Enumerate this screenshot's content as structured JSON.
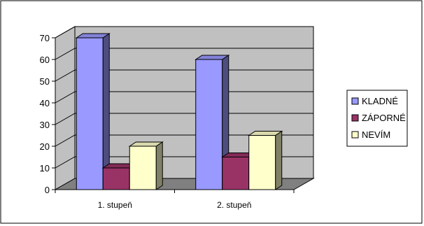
{
  "chart_data": {
    "type": "bar",
    "categories": [
      "1. stupeň",
      "2. stupeň"
    ],
    "series": [
      {
        "name": "KLADNÉ",
        "values": [
          70,
          60
        ],
        "color": "#9999ff"
      },
      {
        "name": "ZÁPORNÉ",
        "values": [
          10,
          15
        ],
        "color": "#993366"
      },
      {
        "name": "NEVÍM",
        "values": [
          20,
          25
        ],
        "color": "#ffffcc"
      }
    ],
    "ylim": [
      0,
      70
    ],
    "yticks": [
      "0",
      "10",
      "20",
      "30",
      "40",
      "50",
      "60",
      "70"
    ],
    "grid": true,
    "style": "3d-clustered-column",
    "wall_color": "#c0c0c0",
    "floor_color": "#808080",
    "legend_position": "right",
    "title": "",
    "xlabel": "",
    "ylabel": ""
  }
}
